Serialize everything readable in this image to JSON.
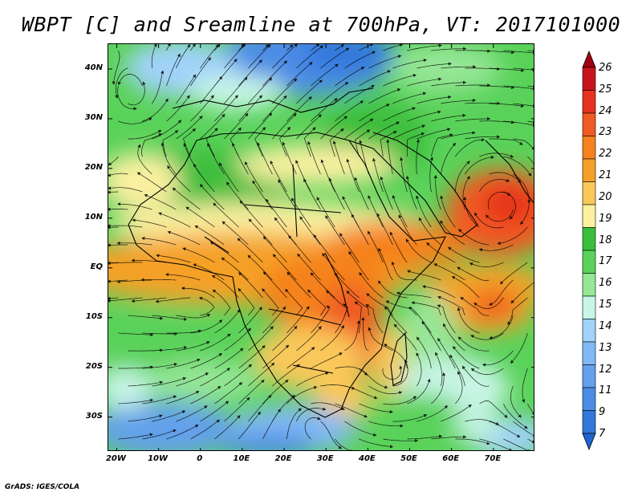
{
  "title": "WBPT [C] and Sreamline at 700hPa, VT: 2017101000",
  "footer": "GrADS: IGES/COLA",
  "map": {
    "lon_range": [
      -22,
      80
    ],
    "lat_range": [
      -37,
      45
    ],
    "lat_ticks": [
      {
        "value": 40,
        "label": "40N"
      },
      {
        "value": 30,
        "label": "30N"
      },
      {
        "value": 20,
        "label": "20N"
      },
      {
        "value": 10,
        "label": "10N"
      },
      {
        "value": 0,
        "label": "EQ"
      },
      {
        "value": -10,
        "label": "10S"
      },
      {
        "value": -20,
        "label": "20S"
      },
      {
        "value": -30,
        "label": "30S"
      }
    ],
    "lon_ticks": [
      {
        "value": -20,
        "label": "20W"
      },
      {
        "value": -10,
        "label": "10W"
      },
      {
        "value": 0,
        "label": "0"
      },
      {
        "value": 10,
        "label": "10E"
      },
      {
        "value": 20,
        "label": "20E"
      },
      {
        "value": 30,
        "label": "30E"
      },
      {
        "value": 40,
        "label": "40E"
      },
      {
        "value": 50,
        "label": "50E"
      },
      {
        "value": 60,
        "label": "60E"
      },
      {
        "value": 70,
        "label": "70E"
      }
    ]
  },
  "colorbar": {
    "labels": [
      "26",
      "25",
      "24",
      "23",
      "22",
      "21",
      "20",
      "19",
      "18",
      "17",
      "16",
      "15",
      "14",
      "13",
      "12",
      "11",
      "9",
      "7"
    ],
    "colors": [
      "#a0000f",
      "#c8141e",
      "#e6321e",
      "#f05a23",
      "#f5821e",
      "#f5a028",
      "#fac85a",
      "#faf0a0",
      "#3cbe3c",
      "#5ad25a",
      "#96e696",
      "#c8f5e6",
      "#a0d2fa",
      "#82b9f5",
      "#64a0eb",
      "#4b8ce6",
      "#3278dc",
      "#1e64d2"
    ],
    "top_arrow_color": "#a0000f",
    "bottom_arrow_color": "#1e64d2"
  }
}
